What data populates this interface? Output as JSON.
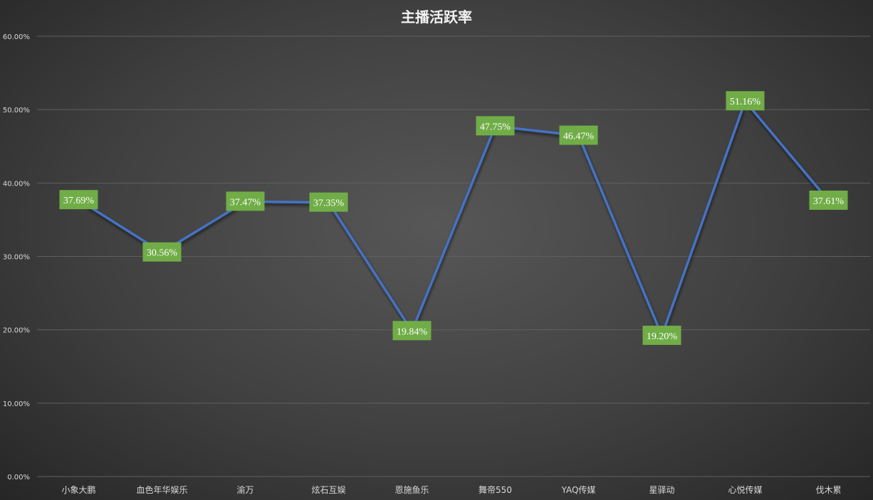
{
  "chart_data": {
    "type": "line",
    "title": "主播活跃率",
    "categories": [
      "小象大鹏",
      "血色年华娱乐",
      "渝万",
      "炫石互娱",
      "恩施鱼乐",
      "舞帝550",
      "YAQ传媒",
      "星驿动",
      "心悦传媒",
      "伐木累"
    ],
    "values": [
      37.69,
      30.56,
      37.47,
      37.35,
      19.84,
      47.75,
      46.47,
      19.2,
      51.16,
      37.61
    ],
    "data_labels": [
      "37.69%",
      "30.56%",
      "37.47%",
      "37.35%",
      "19.84%",
      "47.75%",
      "46.47%",
      "19.20%",
      "51.16%",
      "37.61%"
    ],
    "y_ticks": [
      "0.00%",
      "10.00%",
      "20.00%",
      "30.00%",
      "40.00%",
      "50.00%",
      "60.00%"
    ],
    "ylim": [
      0,
      60
    ],
    "grid": true,
    "legend": "none",
    "colors": {
      "line": "#4472c4",
      "label_bg": "#70ad47",
      "grid": "#5f5f5f",
      "text": "#d9d9d9"
    }
  }
}
